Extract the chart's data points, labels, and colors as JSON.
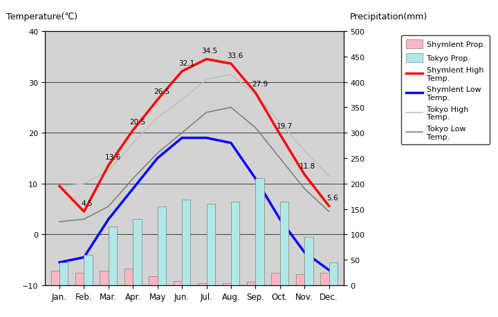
{
  "months": [
    "Jan.",
    "Feb.",
    "Mar.",
    "Apr.",
    "May",
    "Jun.",
    "Jul.",
    "Aug.",
    "Sep.",
    "Oct.",
    "Nov.",
    "Dec."
  ],
  "shymlent_high": [
    9.5,
    4.5,
    13.6,
    20.5,
    26.5,
    32.1,
    34.5,
    33.6,
    27.9,
    19.7,
    11.8,
    5.6
  ],
  "shymlent_low": [
    -5.5,
    -4.5,
    3.0,
    9.0,
    15.0,
    19.0,
    19.0,
    18.0,
    11.0,
    3.0,
    -3.5,
    -7.0
  ],
  "tokyo_high": [
    9.5,
    10.0,
    12.5,
    18.0,
    23.0,
    26.5,
    30.5,
    31.5,
    27.5,
    22.0,
    16.5,
    11.5
  ],
  "tokyo_low": [
    2.5,
    3.0,
    5.5,
    11.0,
    16.0,
    20.0,
    24.0,
    25.0,
    21.0,
    15.0,
    9.0,
    4.5
  ],
  "shymlent_precip": [
    28,
    25,
    28,
    32,
    18,
    8,
    4,
    4,
    7,
    24,
    22,
    25
  ],
  "tokyo_precip": [
    45,
    60,
    115,
    130,
    155,
    168,
    160,
    165,
    210,
    165,
    95,
    45
  ],
  "temp_ylim": [
    -10,
    40
  ],
  "precip_ylim": [
    0,
    500
  ],
  "bg_color": "#d3d3d3",
  "shymlent_high_color": "#ff0000",
  "shymlent_low_color": "#0000ff",
  "tokyo_high_color": "#c0c0c0",
  "tokyo_low_color": "#808080",
  "shymlent_precip_color": "#ffb6c1",
  "tokyo_precip_color": "#b0e8e8",
  "title_left": "Temperature(℃)",
  "title_right": "Precipitation(mm)",
  "label_shymlent_high": "Shymlent High\nTemp.",
  "label_shymlent_low": "Shymlent Low\nTemp.",
  "label_tokyo_high": "Tokyo High\nTemp.",
  "label_tokyo_low": "Tokyo Low\nTemp.",
  "label_shymlent_precip": "Shymlent Prop.",
  "label_tokyo_precip": "Tokyo Prop.",
  "shymlent_high_annots": [
    "",
    "4.5",
    "13.6",
    "20.5",
    "26.5",
    "32.1",
    "34.5",
    "33.6",
    "27.9",
    "19.7",
    "11.8",
    "5.6"
  ]
}
